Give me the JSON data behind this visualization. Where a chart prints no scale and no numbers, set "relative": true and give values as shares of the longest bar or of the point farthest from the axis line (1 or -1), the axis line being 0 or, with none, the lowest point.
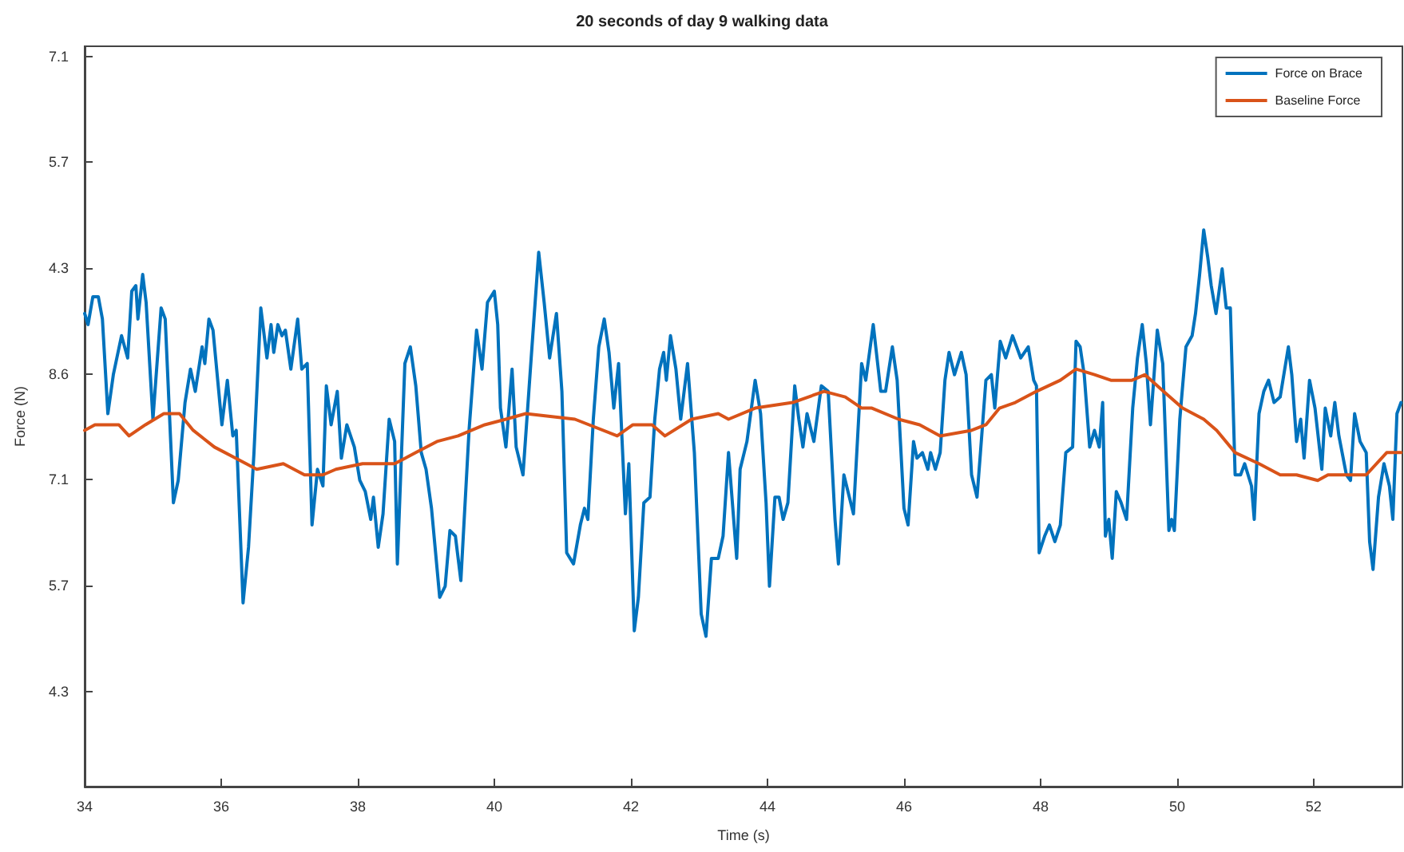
{
  "chart_data": {
    "type": "line",
    "title": "20 seconds of day 9 walking data",
    "xlabel": "Time (s)",
    "ylabel": "Force (N)",
    "xlim": [
      34,
      53.3
    ],
    "xticks": [
      34,
      36,
      38,
      40,
      42,
      44,
      46,
      48,
      50,
      52
    ],
    "relative": true,
    "annotations": [
      "4.3",
      "5.7",
      "7.1",
      "8.6",
      "4.3",
      "5.7",
      "7.1"
    ],
    "grid": false,
    "legend": "top right",
    "marker": "none",
    "line_style": "solid",
    "series": [
      {
        "name": "Force on Brace",
        "color": "#0072bd",
        "x": [
          34.0,
          34.05,
          34.12,
          34.2,
          34.26,
          34.34,
          34.42,
          34.54,
          34.63,
          34.69,
          34.75,
          34.78,
          34.85,
          34.9,
          35.0,
          35.12,
          35.18,
          35.3,
          35.37,
          35.47,
          35.55,
          35.62,
          35.72,
          35.76,
          35.82,
          35.88,
          36.01,
          36.09,
          36.17,
          36.22,
          36.32,
          36.4,
          36.48,
          36.58,
          36.67,
          36.73,
          36.77,
          36.83,
          36.89,
          36.94,
          37.02,
          37.12,
          37.18,
          37.26,
          37.33,
          37.41,
          37.49,
          37.54,
          37.61,
          37.7,
          37.76,
          37.84,
          37.95,
          38.03,
          38.11,
          38.19,
          38.23,
          38.3,
          38.37,
          38.46,
          38.54,
          38.58,
          38.69,
          38.77,
          38.85,
          38.93,
          39.0,
          39.08,
          39.2,
          39.28,
          39.35,
          39.43,
          39.51,
          39.63,
          39.74,
          39.82,
          39.9,
          40.0,
          40.05,
          40.09,
          40.17,
          40.26,
          40.32,
          40.42,
          40.54,
          40.65,
          40.73,
          40.81,
          40.91,
          40.99,
          41.06,
          41.16,
          41.26,
          41.32,
          41.37,
          41.45,
          41.53,
          41.61,
          41.68,
          41.75,
          41.82,
          41.92,
          41.97,
          42.05,
          42.11,
          42.19,
          42.28,
          42.35,
          42.42,
          42.48,
          42.52,
          42.58,
          42.66,
          42.73,
          42.83,
          42.93,
          43.03,
          43.1,
          43.18,
          43.28,
          43.35,
          43.43,
          43.55,
          43.6,
          43.7,
          43.82,
          43.9,
          43.98,
          44.03,
          44.11,
          44.17,
          44.23,
          44.3,
          44.4,
          44.46,
          44.52,
          44.58,
          44.68,
          44.79,
          44.89,
          44.99,
          45.04,
          45.12,
          45.18,
          45.26,
          45.38,
          45.44,
          45.55,
          45.66,
          45.73,
          45.83,
          45.9,
          46.0,
          46.06,
          46.14,
          46.19,
          46.27,
          46.35,
          46.39,
          46.46,
          46.53,
          46.6,
          46.66,
          46.74,
          46.84,
          46.91,
          46.99,
          47.07,
          47.12,
          47.2,
          47.28,
          47.33,
          47.41,
          47.49,
          47.59,
          47.71,
          47.82,
          47.9,
          47.94,
          47.98,
          48.06,
          48.13,
          48.21,
          48.29,
          48.37,
          48.47,
          48.52,
          48.58,
          48.64,
          48.72,
          48.79,
          48.86,
          48.91,
          48.95,
          49.0,
          49.05,
          49.11,
          49.18,
          49.26,
          49.35,
          49.42,
          49.49,
          49.55,
          49.61,
          49.71,
          49.79,
          49.88,
          49.92,
          49.96,
          50.04,
          50.13,
          50.22,
          50.27,
          50.33,
          50.39,
          50.45,
          50.5,
          50.57,
          50.66,
          50.72,
          50.78,
          50.85,
          50.93,
          50.99,
          51.09,
          51.13,
          51.2,
          51.27,
          51.34,
          51.42,
          51.51,
          51.63,
          51.68,
          51.75,
          51.81,
          51.86,
          51.94,
          52.02,
          52.12,
          52.17,
          52.25,
          52.31,
          52.37,
          52.48,
          52.54,
          52.6,
          52.68,
          52.77,
          52.82,
          52.87,
          52.95,
          53.03,
          53.11,
          53.16,
          53.22,
          53.28
        ],
        "values": [
          0.85,
          0.83,
          0.88,
          0.88,
          0.84,
          0.67,
          0.74,
          0.81,
          0.77,
          0.89,
          0.9,
          0.84,
          0.92,
          0.87,
          0.66,
          0.86,
          0.84,
          0.51,
          0.55,
          0.69,
          0.75,
          0.71,
          0.79,
          0.76,
          0.84,
          0.82,
          0.65,
          0.73,
          0.63,
          0.64,
          0.33,
          0.43,
          0.6,
          0.86,
          0.77,
          0.83,
          0.78,
          0.83,
          0.81,
          0.82,
          0.75,
          0.84,
          0.75,
          0.76,
          0.47,
          0.57,
          0.54,
          0.72,
          0.65,
          0.71,
          0.59,
          0.65,
          0.61,
          0.55,
          0.53,
          0.48,
          0.52,
          0.43,
          0.49,
          0.66,
          0.62,
          0.4,
          0.76,
          0.79,
          0.72,
          0.6,
          0.57,
          0.5,
          0.34,
          0.36,
          0.46,
          0.45,
          0.37,
          0.64,
          0.82,
          0.75,
          0.87,
          0.89,
          0.83,
          0.68,
          0.61,
          0.75,
          0.61,
          0.56,
          0.77,
          0.96,
          0.87,
          0.77,
          0.85,
          0.71,
          0.42,
          0.4,
          0.47,
          0.5,
          0.48,
          0.66,
          0.79,
          0.84,
          0.78,
          0.68,
          0.76,
          0.49,
          0.58,
          0.28,
          0.34,
          0.51,
          0.52,
          0.66,
          0.75,
          0.78,
          0.73,
          0.81,
          0.75,
          0.66,
          0.76,
          0.6,
          0.31,
          0.27,
          0.41,
          0.41,
          0.45,
          0.6,
          0.41,
          0.57,
          0.62,
          0.73,
          0.67,
          0.51,
          0.36,
          0.52,
          0.52,
          0.48,
          0.51,
          0.72,
          0.66,
          0.61,
          0.67,
          0.62,
          0.72,
          0.71,
          0.48,
          0.4,
          0.56,
          0.53,
          0.49,
          0.76,
          0.73,
          0.83,
          0.71,
          0.71,
          0.79,
          0.73,
          0.5,
          0.47,
          0.62,
          0.59,
          0.6,
          0.57,
          0.6,
          0.57,
          0.6,
          0.73,
          0.78,
          0.74,
          0.78,
          0.74,
          0.56,
          0.52,
          0.6,
          0.73,
          0.74,
          0.68,
          0.8,
          0.77,
          0.81,
          0.77,
          0.79,
          0.73,
          0.72,
          0.42,
          0.45,
          0.47,
          0.44,
          0.47,
          0.6,
          0.61,
          0.8,
          0.79,
          0.74,
          0.61,
          0.64,
          0.61,
          0.69,
          0.45,
          0.48,
          0.41,
          0.53,
          0.51,
          0.48,
          0.68,
          0.77,
          0.83,
          0.76,
          0.65,
          0.82,
          0.76,
          0.46,
          0.48,
          0.46,
          0.66,
          0.79,
          0.81,
          0.85,
          0.92,
          1,
          0.95,
          0.9,
          0.85,
          0.93,
          0.86,
          0.86,
          0.56,
          0.56,
          0.58,
          0.54,
          0.48,
          0.67,
          0.71,
          0.73,
          0.69,
          0.7,
          0.79,
          0.74,
          0.62,
          0.66,
          0.59,
          0.73,
          0.68,
          0.57,
          0.68,
          0.63,
          0.69,
          0.63,
          0.56,
          0.55,
          0.67,
          0.62,
          0.6,
          0.44,
          0.39,
          0.52,
          0.58,
          0.54,
          0.48,
          0.67,
          0.69
        ]
      },
      {
        "name": "Baseline Force",
        "color": "#d95319",
        "x": [
          34.0,
          34.15,
          34.5,
          34.65,
          34.89,
          35.16,
          35.39,
          35.59,
          35.9,
          36.21,
          36.52,
          36.91,
          37.22,
          37.49,
          37.68,
          38.07,
          38.54,
          38.85,
          39.16,
          39.47,
          39.86,
          40.17,
          40.46,
          41.18,
          41.8,
          42.03,
          42.31,
          42.5,
          42.89,
          43.28,
          43.43,
          43.82,
          44.37,
          44.83,
          45.14,
          45.38,
          45.53,
          45.92,
          46.23,
          46.53,
          46.99,
          47.2,
          47.4,
          47.63,
          47.94,
          48.29,
          48.52,
          48.79,
          49.03,
          49.34,
          49.53,
          49.8,
          50.08,
          50.39,
          50.58,
          50.85,
          51.2,
          51.51,
          51.75,
          52.06,
          52.21,
          52.45,
          52.77,
          53.07,
          53.28
        ],
        "values": [
          0.64,
          0.65,
          0.65,
          0.63,
          0.65,
          0.67,
          0.67,
          0.64,
          0.61,
          0.59,
          0.57,
          0.58,
          0.56,
          0.56,
          0.57,
          0.58,
          0.58,
          0.6,
          0.62,
          0.63,
          0.65,
          0.66,
          0.67,
          0.66,
          0.63,
          0.65,
          0.65,
          0.63,
          0.66,
          0.67,
          0.66,
          0.68,
          0.69,
          0.71,
          0.7,
          0.68,
          0.68,
          0.66,
          0.65,
          0.63,
          0.64,
          0.65,
          0.68,
          0.69,
          0.71,
          0.73,
          0.75,
          0.74,
          0.73,
          0.73,
          0.74,
          0.71,
          0.68,
          0.66,
          0.64,
          0.6,
          0.58,
          0.56,
          0.56,
          0.55,
          0.56,
          0.56,
          0.56,
          0.6,
          0.6
        ]
      }
    ]
  }
}
